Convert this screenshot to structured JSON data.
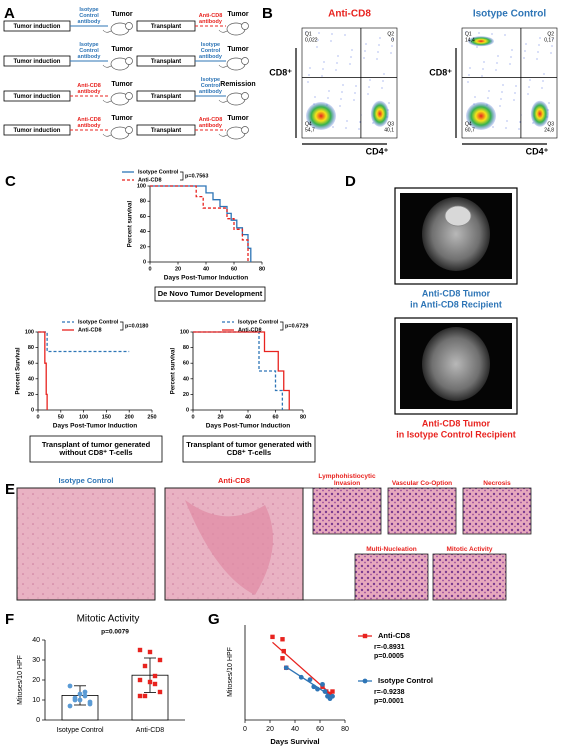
{
  "panel_labels": [
    "A",
    "B",
    "C",
    "D",
    "E",
    "F",
    "G"
  ],
  "panel_a": {
    "rows": [
      {
        "left": {
          "step": "Tumor induction",
          "treatment": "Isotype Control antibody",
          "outcome": "Tumor",
          "color": "#2e75b6",
          "dashed": false
        },
        "right": {
          "step": "Transplant",
          "treatment": "Anti-CD8 antibody",
          "outcome": "Tumor",
          "color": "#e8231f",
          "dashed": true
        }
      },
      {
        "left": {
          "step": "Tumor induction",
          "treatment": "Isotype Control antibody",
          "outcome": "Tumor",
          "color": "#2e75b6",
          "dashed": false
        },
        "right": {
          "step": "Transplant",
          "treatment": "Isotype Control antibody",
          "outcome": "Tumor",
          "color": "#2e75b6",
          "dashed": false
        }
      },
      {
        "left": {
          "step": "Tumor induction",
          "treatment": "Anti-CD8 antibody",
          "outcome": "Tumor",
          "color": "#e8231f",
          "dashed": true
        },
        "right": {
          "step": "Transplant",
          "treatment": "Isotype Control antibody",
          "outcome": "Remission",
          "color": "#2e75b6",
          "dashed": false
        }
      },
      {
        "left": {
          "step": "Tumor induction",
          "treatment": "Anti-CD8 antibody",
          "outcome": "Tumor",
          "color": "#e8231f",
          "dashed": true
        },
        "right": {
          "step": "Transplant",
          "treatment": "Anti-CD8 antibody",
          "outcome": "Tumor",
          "color": "#e8231f",
          "dashed": true
        }
      }
    ]
  },
  "panel_b": {
    "plots": [
      {
        "title": "Anti-CD8",
        "color": "#e8231f",
        "y_label": "CD8⁺",
        "x_label": "CD4⁺",
        "quadrants": [
          {
            "name": "Q1",
            "value": "0,022"
          },
          {
            "name": "Q2",
            "value": "0"
          },
          {
            "name": "Q3",
            "value": "40,1"
          },
          {
            "name": "Q4",
            "value": "54,7"
          }
        ]
      },
      {
        "title": "Isotype Control",
        "color": "#2e75b6",
        "y_label": "CD8⁺",
        "x_label": "CD4⁺",
        "quadrants": [
          {
            "name": "Q1",
            "value": "14,4"
          },
          {
            "name": "Q2",
            "value": "0,17"
          },
          {
            "name": "Q3",
            "value": "24,8"
          },
          {
            "name": "Q4",
            "value": "60,7"
          }
        ]
      }
    ]
  },
  "km_top": {
    "type": "line",
    "y_label": "Percent survival",
    "x_label": "Days Post-Tumor Induction",
    "caption": "De Novo Tumor Development",
    "p_value": "p=0.7563",
    "xlim": [
      0,
      80
    ],
    "ylim": [
      0,
      100
    ],
    "xticks": [
      0,
      20,
      40,
      60,
      80
    ],
    "yticks": [
      0,
      20,
      40,
      60,
      80,
      100
    ],
    "series": [
      {
        "name": "Isotype Control",
        "color": "#2e75b6",
        "dashed": false,
        "x": [
          0,
          40,
          45,
          50,
          55,
          58,
          62,
          66,
          70,
          72
        ],
        "values": [
          100,
          91,
          82,
          73,
          64,
          55,
          45,
          36,
          18,
          0
        ]
      },
      {
        "name": "Anti-CD8",
        "color": "#e8231f",
        "dashed": true,
        "x": [
          0,
          33,
          38,
          55,
          60,
          66,
          70
        ],
        "values": [
          100,
          86,
          71,
          57,
          43,
          29,
          0
        ]
      }
    ]
  },
  "km_left": {
    "type": "line",
    "y_label": "Percent Survival",
    "x_label": "Days Post-Tumor Induction",
    "caption": "Transplant of tumor generated without CD8⁺ T-cells",
    "p_value": "p=0.0180",
    "xlim": [
      0,
      250
    ],
    "ylim": [
      0,
      100
    ],
    "xticks": [
      0,
      50,
      100,
      150,
      200,
      250
    ],
    "yticks": [
      0,
      20,
      40,
      60,
      80,
      100
    ],
    "series": [
      {
        "name": "Isotype Control",
        "color": "#2e75b6",
        "dashed": true,
        "x": [
          0,
          20,
          200
        ],
        "values": [
          100,
          75,
          75
        ]
      },
      {
        "name": "Anti-CD8",
        "color": "#e8231f",
        "dashed": false,
        "x": [
          0,
          15,
          18,
          20
        ],
        "values": [
          100,
          60,
          20,
          0
        ]
      }
    ]
  },
  "km_right": {
    "type": "line",
    "y_label": "Percent survival",
    "x_label": "Days Post-Tumor Induction",
    "caption": "Transplant of tumor generated with CD8⁺ T-cells",
    "p_value": "p=0.6729",
    "xlim": [
      0,
      80
    ],
    "ylim": [
      0,
      100
    ],
    "xticks": [
      0,
      20,
      40,
      60,
      80
    ],
    "yticks": [
      0,
      20,
      40,
      60,
      80,
      100
    ],
    "series": [
      {
        "name": "Isotype Control",
        "color": "#2e75b6",
        "dashed": true,
        "x": [
          0,
          48,
          60,
          65
        ],
        "values": [
          100,
          50,
          25,
          0
        ]
      },
      {
        "name": "Anti-CD8",
        "color": "#e8231f",
        "dashed": false,
        "x": [
          0,
          52,
          62,
          66,
          70
        ],
        "values": [
          100,
          75,
          50,
          25,
          0
        ]
      }
    ]
  },
  "panel_d": {
    "captions": [
      {
        "lines": [
          "Anti-CD8 Tumor",
          "in Anti-CD8 Recipient"
        ],
        "color": "#2e75b6"
      },
      {
        "lines": [
          "Anti-CD8 Tumor",
          "in Isotype Control Recipient"
        ],
        "color": "#e8231f"
      }
    ]
  },
  "panel_e": {
    "main": [
      {
        "label": "Isotype Control",
        "color": "#2e75b6"
      },
      {
        "label": "Anti-CD8",
        "color": "#e8231f"
      }
    ],
    "features": [
      "Lymphohistiocytic Invasion",
      "Vascular Co-Option",
      "Necrosis",
      "Multi-Nucleation",
      "Mitotic Activity"
    ],
    "feature_color": "#e8231f"
  },
  "panel_f": {
    "type": "bar",
    "title": "Mitotic Activity",
    "p_value": "p=0.0079",
    "y_label": "Mitoses/10 HPF",
    "categories": [
      "Isotype Control",
      "Anti-CD8"
    ],
    "values": [
      12.3,
      22.4
    ],
    "errors": [
      4.8,
      8.6
    ],
    "colors": [
      "#5b9bd5",
      "#e8231f"
    ],
    "points": [
      [
        17,
        13,
        9,
        10,
        14,
        7,
        10,
        8,
        11,
        12
      ],
      [
        35,
        34,
        30,
        27,
        22,
        20,
        19,
        14,
        12,
        18,
        12
      ]
    ],
    "ylim": [
      0,
      40
    ],
    "yticks": [
      0,
      10,
      20,
      30,
      40
    ]
  },
  "panel_g": {
    "type": "scatter",
    "x_label": "Days Survival",
    "y_label": "Mitoses/10 HPF",
    "xlim": [
      0,
      80
    ],
    "ylim": [
      0,
      40
    ],
    "xticks": [
      0,
      20,
      40,
      60,
      80
    ],
    "series": [
      {
        "name": "Anti-CD8",
        "color": "#e8231f",
        "marker": "square",
        "stats": [
          "r=-0.8931",
          "p=0.0005"
        ],
        "x": [
          22,
          30,
          31,
          30,
          33,
          62,
          65,
          68,
          70
        ],
        "values": [
          35,
          34,
          29,
          26,
          22,
          14,
          12,
          11,
          12
        ]
      },
      {
        "name": "Isotype Control",
        "color": "#2e75b6",
        "marker": "circle",
        "stats": [
          "r=-0.9238",
          "p=0.0001"
        ],
        "x": [
          33,
          45,
          52,
          55,
          58,
          62,
          64,
          66,
          68,
          70
        ],
        "values": [
          22,
          18,
          17,
          14,
          13,
          15,
          12,
          10,
          9,
          10
        ]
      }
    ]
  }
}
